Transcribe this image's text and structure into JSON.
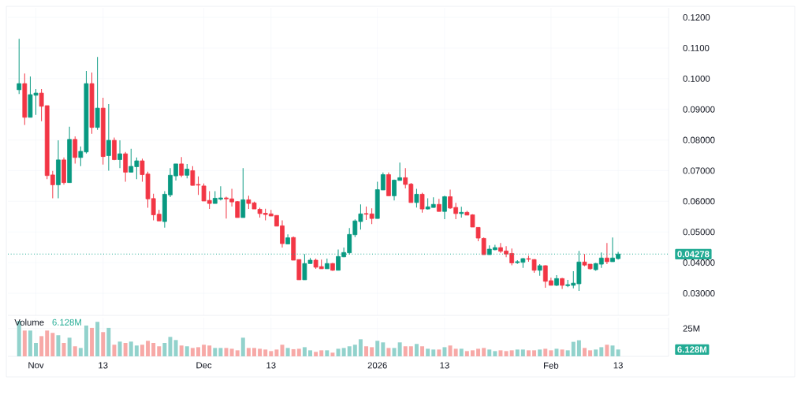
{
  "chart_data": [
    {
      "type": "candlestick",
      "tick_labels": "y",
      "grid": true,
      "xlim": [
        "2025-10-27",
        "2026-02-22"
      ],
      "xticks": [
        {
          "value": "2025-11-01",
          "label": null
        },
        {
          "value": "2025-11-13",
          "label": null
        },
        {
          "value": "2025-12-01",
          "label": null
        },
        {
          "value": "2025-12-13",
          "label": null
        },
        {
          "value": "2026-01-01",
          "label": null
        },
        {
          "value": "2026-01-13",
          "label": null
        },
        {
          "value": "2026-02-01",
          "label": null
        },
        {
          "value": "2026-02-13",
          "label": null
        }
      ],
      "ylim": [
        0.0228,
        0.1231
      ],
      "yticks": [
        {
          "value": 0.03,
          "label": "0.03000"
        },
        {
          "value": 0.04,
          "label": "0.04000"
        },
        {
          "value": 0.05,
          "label": "0.05000"
        },
        {
          "value": 0.06,
          "label": "0.06000"
        },
        {
          "value": 0.07,
          "label": "0.07000"
        },
        {
          "value": 0.08,
          "label": "0.08000"
        },
        {
          "value": 0.09,
          "label": "0.09000"
        },
        {
          "value": 0.1,
          "label": "0.1000"
        },
        {
          "value": 0.11,
          "label": "0.1100"
        },
        {
          "value": 0.12,
          "label": "0.1200"
        }
      ],
      "ref_lines": [
        {
          "axis": "y",
          "value": 0.04278,
          "label": "0.04278",
          "color": "#22ab94",
          "line_style": "dotted"
        }
      ],
      "x": [
        "2025-10-29",
        "2025-10-30",
        "2025-10-31",
        "2025-11-01",
        "2025-11-02",
        "2025-11-03",
        "2025-11-04",
        "2025-11-05",
        "2025-11-06",
        "2025-11-07",
        "2025-11-08",
        "2025-11-09",
        "2025-11-10",
        "2025-11-11",
        "2025-11-12",
        "2025-11-13",
        "2025-11-14",
        "2025-11-15",
        "2025-11-16",
        "2025-11-17",
        "2025-11-18",
        "2025-11-19",
        "2025-11-20",
        "2025-11-21",
        "2025-11-22",
        "2025-11-23",
        "2025-11-24",
        "2025-11-25",
        "2025-11-26",
        "2025-11-27",
        "2025-11-28",
        "2025-11-29",
        "2025-11-30",
        "2025-12-01",
        "2025-12-02",
        "2025-12-03",
        "2025-12-04",
        "2025-12-05",
        "2025-12-06",
        "2025-12-07",
        "2025-12-08",
        "2025-12-09",
        "2025-12-10",
        "2025-12-11",
        "2025-12-12",
        "2025-12-13",
        "2025-12-14",
        "2025-12-15",
        "2025-12-16",
        "2025-12-17",
        "2025-12-18",
        "2025-12-19",
        "2025-12-20",
        "2025-12-21",
        "2025-12-22",
        "2025-12-23",
        "2025-12-24",
        "2025-12-25",
        "2025-12-26",
        "2025-12-27",
        "2025-12-28",
        "2025-12-29",
        "2025-12-30",
        "2025-12-31",
        "2026-01-01",
        "2026-01-02",
        "2026-01-03",
        "2026-01-04",
        "2026-01-05",
        "2026-01-06",
        "2026-01-07",
        "2026-01-08",
        "2026-01-09",
        "2026-01-10",
        "2026-01-11",
        "2026-01-12",
        "2026-01-13",
        "2026-01-14",
        "2026-01-15",
        "2026-01-16",
        "2026-01-17",
        "2026-01-18",
        "2026-01-19",
        "2026-01-20",
        "2026-01-21",
        "2026-01-22",
        "2026-01-23",
        "2026-01-24",
        "2026-01-25",
        "2026-01-26",
        "2026-01-27",
        "2026-01-28",
        "2026-01-29",
        "2026-01-30",
        "2026-01-31",
        "2026-02-01",
        "2026-02-02",
        "2026-02-03",
        "2026-02-04",
        "2026-02-05",
        "2026-02-06",
        "2026-02-07",
        "2026-02-08",
        "2026-02-09",
        "2026-02-10",
        "2026-02-11",
        "2026-02-12",
        "2026-02-13"
      ],
      "ohlc": [
        [
          0.0964,
          0.113,
          0.095,
          0.0984
        ],
        [
          0.0984,
          0.1017,
          0.0849,
          0.0874
        ],
        [
          0.0874,
          0.1007,
          0.0874,
          0.0948
        ],
        [
          0.0946,
          0.0966,
          0.0882,
          0.0953
        ],
        [
          0.0953,
          0.0966,
          0.0861,
          0.091
        ],
        [
          0.0912,
          0.0912,
          0.0672,
          0.0684
        ],
        [
          0.0686,
          0.0699,
          0.061,
          0.0654
        ],
        [
          0.0654,
          0.0799,
          0.061,
          0.0735
        ],
        [
          0.0735,
          0.0743,
          0.0654,
          0.0661
        ],
        [
          0.0661,
          0.0843,
          0.0661,
          0.0802
        ],
        [
          0.0802,
          0.0812,
          0.0723,
          0.0743
        ],
        [
          0.0743,
          0.0779,
          0.0715,
          0.0763
        ],
        [
          0.0761,
          0.1025,
          0.0756,
          0.0984
        ],
        [
          0.0984,
          0.102,
          0.082,
          0.0841
        ],
        [
          0.0841,
          0.1071,
          0.0833,
          0.0904
        ],
        [
          0.0904,
          0.0938,
          0.072,
          0.0746
        ],
        [
          0.0749,
          0.0917,
          0.07,
          0.0799
        ],
        [
          0.0799,
          0.0808,
          0.0734,
          0.0736
        ],
        [
          0.0736,
          0.0799,
          0.0708,
          0.0755
        ],
        [
          0.0755,
          0.0761,
          0.0664,
          0.0695
        ],
        [
          0.0695,
          0.0771,
          0.0695,
          0.0714
        ],
        [
          0.0713,
          0.0743,
          0.0672,
          0.0732
        ],
        [
          0.0732,
          0.0739,
          0.0664,
          0.0687
        ],
        [
          0.0689,
          0.0697,
          0.0579,
          0.0608
        ],
        [
          0.0609,
          0.0625,
          0.0538,
          0.0556
        ],
        [
          0.0558,
          0.0572,
          0.0536,
          0.0536
        ],
        [
          0.0534,
          0.0633,
          0.0514,
          0.0623
        ],
        [
          0.0621,
          0.0708,
          0.0614,
          0.0685
        ],
        [
          0.0683,
          0.0722,
          0.0668,
          0.0722
        ],
        [
          0.0722,
          0.0744,
          0.0679,
          0.0685
        ],
        [
          0.0685,
          0.0722,
          0.0675,
          0.0705
        ],
        [
          0.07,
          0.0715,
          0.0652,
          0.0652
        ],
        [
          0.0655,
          0.0681,
          0.0621,
          0.0653
        ],
        [
          0.065,
          0.0658,
          0.0601,
          0.0601
        ],
        [
          0.0603,
          0.0633,
          0.0575,
          0.0593
        ],
        [
          0.0593,
          0.0633,
          0.0593,
          0.061
        ],
        [
          0.0607,
          0.0649,
          0.0603,
          0.0611
        ],
        [
          0.0611,
          0.0615,
          0.0544,
          0.0608
        ],
        [
          0.0608,
          0.0641,
          0.0583,
          0.0598
        ],
        [
          0.0599,
          0.0601,
          0.0547,
          0.0547
        ],
        [
          0.0547,
          0.0708,
          0.0547,
          0.0605
        ],
        [
          0.0605,
          0.0618,
          0.0575,
          0.0593
        ],
        [
          0.0595,
          0.0599,
          0.0575,
          0.0575
        ],
        [
          0.0574,
          0.0579,
          0.0547,
          0.056
        ],
        [
          0.0561,
          0.0576,
          0.0538,
          0.0557
        ],
        [
          0.0559,
          0.0572,
          0.0552,
          0.0552
        ],
        [
          0.0554,
          0.0554,
          0.0519,
          0.0519
        ],
        [
          0.052,
          0.0538,
          0.0449,
          0.0462
        ],
        [
          0.0461,
          0.0492,
          0.046,
          0.0481
        ],
        [
          0.0482,
          0.0485,
          0.0408,
          0.0408
        ],
        [
          0.041,
          0.041,
          0.0344,
          0.0344
        ],
        [
          0.0344,
          0.0428,
          0.0344,
          0.0397
        ],
        [
          0.0397,
          0.0415,
          0.0397,
          0.0408
        ],
        [
          0.0408,
          0.0413,
          0.038,
          0.0385
        ],
        [
          0.0387,
          0.041,
          0.038,
          0.038
        ],
        [
          0.038,
          0.0413,
          0.038,
          0.0397
        ],
        [
          0.0397,
          0.0399,
          0.0373,
          0.0375
        ],
        [
          0.0375,
          0.0443,
          0.0375,
          0.042
        ],
        [
          0.0419,
          0.0449,
          0.0418,
          0.0433
        ],
        [
          0.0432,
          0.0513,
          0.0426,
          0.0492
        ],
        [
          0.0491,
          0.0541,
          0.0483,
          0.0536
        ],
        [
          0.0534,
          0.059,
          0.0508,
          0.0559
        ],
        [
          0.056,
          0.0583,
          0.0539,
          0.0558
        ],
        [
          0.0559,
          0.0577,
          0.0526,
          0.0544
        ],
        [
          0.0544,
          0.0664,
          0.0544,
          0.0638
        ],
        [
          0.0637,
          0.0694,
          0.0637,
          0.0687
        ],
        [
          0.0687,
          0.0694,
          0.0618,
          0.0618
        ],
        [
          0.0618,
          0.0671,
          0.0603,
          0.0669
        ],
        [
          0.0668,
          0.0726,
          0.0668,
          0.0677
        ],
        [
          0.0677,
          0.0708,
          0.0642,
          0.0655
        ],
        [
          0.0656,
          0.066,
          0.0596,
          0.0596
        ],
        [
          0.0596,
          0.0641,
          0.058,
          0.0623
        ],
        [
          0.0623,
          0.0628,
          0.0563,
          0.0575
        ],
        [
          0.0575,
          0.061,
          0.0573,
          0.0582
        ],
        [
          0.058,
          0.0613,
          0.058,
          0.059
        ],
        [
          0.059,
          0.0608,
          0.0567,
          0.0567
        ],
        [
          0.0567,
          0.0618,
          0.0542,
          0.0615
        ],
        [
          0.0615,
          0.0638,
          0.0575,
          0.0578
        ],
        [
          0.058,
          0.0595,
          0.0542,
          0.056
        ],
        [
          0.056,
          0.0582,
          0.0547,
          0.0564
        ],
        [
          0.0564,
          0.0569,
          0.0555,
          0.0555
        ],
        [
          0.0556,
          0.0558,
          0.0516,
          0.0516
        ],
        [
          0.0515,
          0.0515,
          0.047,
          0.048
        ],
        [
          0.0479,
          0.0482,
          0.0426,
          0.0426
        ],
        [
          0.0426,
          0.0456,
          0.0426,
          0.0444
        ],
        [
          0.0442,
          0.0458,
          0.044,
          0.0449
        ],
        [
          0.0449,
          0.0464,
          0.0432,
          0.0437
        ],
        [
          0.0438,
          0.0454,
          0.0418,
          0.0428
        ],
        [
          0.043,
          0.0446,
          0.0391,
          0.0399
        ],
        [
          0.04,
          0.0408,
          0.0396,
          0.0403
        ],
        [
          0.0401,
          0.0415,
          0.0383,
          0.0413
        ],
        [
          0.0413,
          0.0423,
          0.0403,
          0.0411
        ],
        [
          0.041,
          0.0411,
          0.0367,
          0.0375
        ],
        [
          0.0375,
          0.0395,
          0.0357,
          0.039
        ],
        [
          0.039,
          0.0391,
          0.0318,
          0.0339
        ],
        [
          0.0341,
          0.0351,
          0.0326,
          0.0326
        ],
        [
          0.0326,
          0.0359,
          0.0324,
          0.0348
        ],
        [
          0.0348,
          0.035,
          0.0314,
          0.0326
        ],
        [
          0.0325,
          0.0344,
          0.032,
          0.0328
        ],
        [
          0.0326,
          0.0372,
          0.0316,
          0.0333
        ],
        [
          0.0331,
          0.0438,
          0.0308,
          0.0402
        ],
        [
          0.0402,
          0.0428,
          0.0388,
          0.0392
        ],
        [
          0.0395,
          0.0395,
          0.0377,
          0.038
        ],
        [
          0.0377,
          0.0399,
          0.0373,
          0.0397
        ],
        [
          0.0395,
          0.0433,
          0.0383,
          0.0415
        ],
        [
          0.0415,
          0.0464,
          0.0395,
          0.0403
        ],
        [
          0.0403,
          0.0482,
          0.0403,
          0.0415
        ],
        [
          0.0413,
          0.0435,
          0.041,
          0.0428
        ]
      ],
      "colors": [
        "#089981",
        "#f23645",
        "#089981",
        "#089981",
        "#f23645",
        "#f23645",
        "#f23645",
        "#089981",
        "#f23645",
        "#089981",
        "#f23645",
        "#089981",
        "#089981",
        "#f23645",
        "#089981",
        "#f23645",
        "#089981",
        "#f23645",
        "#089981",
        "#f23645",
        "#089981",
        "#089981",
        "#f23645",
        "#f23645",
        "#f23645",
        "#f23645",
        "#089981",
        "#089981",
        "#089981",
        "#f23645",
        "#089981",
        "#f23645",
        "#f23645",
        "#f23645",
        "#f23645",
        "#089981",
        "#089981",
        "#f23645",
        "#f23645",
        "#f23645",
        "#089981",
        "#f23645",
        "#f23645",
        "#f23645",
        "#f23645",
        "#f23645",
        "#f23645",
        "#f23645",
        "#089981",
        "#f23645",
        "#f23645",
        "#089981",
        "#089981",
        "#f23645",
        "#f23645",
        "#089981",
        "#f23645",
        "#089981",
        "#089981",
        "#089981",
        "#089981",
        "#089981",
        "#f23645",
        "#f23645",
        "#089981",
        "#089981",
        "#f23645",
        "#089981",
        "#089981",
        "#f23645",
        "#f23645",
        "#089981",
        "#f23645",
        "#089981",
        "#089981",
        "#f23645",
        "#089981",
        "#f23645",
        "#f23645",
        "#089981",
        "#f23645",
        "#f23645",
        "#f23645",
        "#f23645",
        "#089981",
        "#089981",
        "#f23645",
        "#f23645",
        "#f23645",
        "#089981",
        "#089981",
        "#f23645",
        "#f23645",
        "#089981",
        "#f23645",
        "#f23645",
        "#089981",
        "#f23645",
        "#089981",
        "#089981",
        "#089981",
        "#f23645",
        "#f23645",
        "#089981",
        "#089981",
        "#f23645",
        "#089981",
        "#089981"
      ]
    },
    {
      "type": "bar",
      "title": "Volume",
      "subtitle": "6.128M",
      "grid": true,
      "xlim": [
        "2025-10-27",
        "2026-02-22"
      ],
      "xticks": [
        {
          "value": "2025-11-01",
          "label": "Nov"
        },
        {
          "value": "2025-11-13",
          "label": "13"
        },
        {
          "value": "2025-12-01",
          "label": "Dec"
        },
        {
          "value": "2025-12-13",
          "label": "13"
        },
        {
          "value": "2026-01-01",
          "label": "2026"
        },
        {
          "value": "2026-01-13",
          "label": "13"
        },
        {
          "value": "2026-02-01",
          "label": "Feb"
        },
        {
          "value": "2026-02-13",
          "label": "13"
        }
      ],
      "ylim": [
        0,
        34.6
      ],
      "yticks": [
        {
          "value": 25,
          "label": "25M"
        }
      ],
      "x": [
        "2025-10-29",
        "2025-10-30",
        "2025-10-31",
        "2025-11-01",
        "2025-11-02",
        "2025-11-03",
        "2025-11-04",
        "2025-11-05",
        "2025-11-06",
        "2025-11-07",
        "2025-11-08",
        "2025-11-09",
        "2025-11-10",
        "2025-11-11",
        "2025-11-12",
        "2025-11-13",
        "2025-11-14",
        "2025-11-15",
        "2025-11-16",
        "2025-11-17",
        "2025-11-18",
        "2025-11-19",
        "2025-11-20",
        "2025-11-21",
        "2025-11-22",
        "2025-11-23",
        "2025-11-24",
        "2025-11-25",
        "2025-11-26",
        "2025-11-27",
        "2025-11-28",
        "2025-11-29",
        "2025-11-30",
        "2025-12-01",
        "2025-12-02",
        "2025-12-03",
        "2025-12-04",
        "2025-12-05",
        "2025-12-06",
        "2025-12-07",
        "2025-12-08",
        "2025-12-09",
        "2025-12-10",
        "2025-12-11",
        "2025-12-12",
        "2025-12-13",
        "2025-12-14",
        "2025-12-15",
        "2025-12-16",
        "2025-12-17",
        "2025-12-18",
        "2025-12-19",
        "2025-12-20",
        "2025-12-21",
        "2025-12-22",
        "2025-12-23",
        "2025-12-24",
        "2025-12-25",
        "2025-12-26",
        "2025-12-27",
        "2025-12-28",
        "2025-12-29",
        "2025-12-30",
        "2025-12-31",
        "2026-01-01",
        "2026-01-02",
        "2026-01-03",
        "2026-01-04",
        "2026-01-05",
        "2026-01-06",
        "2026-01-07",
        "2026-01-08",
        "2026-01-09",
        "2026-01-10",
        "2026-01-11",
        "2026-01-12",
        "2026-01-13",
        "2026-01-14",
        "2026-01-15",
        "2026-01-16",
        "2026-01-17",
        "2026-01-18",
        "2026-01-19",
        "2026-01-20",
        "2026-01-21",
        "2026-01-22",
        "2026-01-23",
        "2026-01-24",
        "2026-01-25",
        "2026-01-26",
        "2026-01-27",
        "2026-01-28",
        "2026-01-29",
        "2026-01-30",
        "2026-01-31",
        "2026-02-01",
        "2026-02-02",
        "2026-02-03",
        "2026-02-04",
        "2026-02-05",
        "2026-02-06",
        "2026-02-07",
        "2026-02-08",
        "2026-02-09",
        "2026-02-10",
        "2026-02-11",
        "2026-02-12",
        "2026-02-13"
      ],
      "values": [
        31.8,
        23.1,
        23.1,
        12.0,
        18.1,
        23.1,
        21.0,
        18.9,
        12.0,
        16.7,
        9.0,
        7.5,
        27.6,
        25.5,
        30.9,
        21.7,
        25.5,
        10.4,
        13.2,
        12.0,
        13.2,
        9.7,
        10.4,
        13.9,
        12.0,
        9.0,
        12.0,
        17.4,
        14.6,
        9.7,
        9.0,
        7.5,
        8.2,
        10.4,
        9.7,
        7.5,
        7.5,
        7.5,
        6.8,
        5.4,
        16.7,
        7.5,
        7.5,
        6.8,
        6.1,
        4.7,
        6.1,
        10.4,
        7.5,
        6.4,
        6.8,
        8.2,
        5.4,
        4.0,
        5.4,
        5.4,
        3.3,
        6.8,
        7.5,
        9.0,
        10.4,
        15.3,
        9.0,
        8.2,
        13.9,
        12.5,
        7.5,
        7.5,
        12.5,
        9.0,
        9.0,
        11.1,
        9.0,
        6.8,
        6.1,
        6.1,
        8.2,
        9.7,
        6.8,
        6.8,
        4.7,
        5.4,
        6.8,
        7.5,
        6.1,
        4.7,
        5.4,
        4.7,
        5.4,
        6.1,
        6.1,
        5.4,
        5.4,
        6.1,
        6.8,
        5.4,
        6.8,
        6.1,
        5.4,
        13.0,
        14.4,
        7.5,
        5.4,
        6.1,
        8.2,
        10.4,
        9.7,
        6.128
      ],
      "annotations": [
        "6.128M"
      ],
      "colors": [
        "#92d2cc",
        "#f7a9a7",
        "#92d2cc",
        "#92d2cc",
        "#f7a9a7",
        "#f7a9a7",
        "#f7a9a7",
        "#92d2cc",
        "#f7a9a7",
        "#92d2cc",
        "#f7a9a7",
        "#92d2cc",
        "#92d2cc",
        "#f7a9a7",
        "#92d2cc",
        "#f7a9a7",
        "#92d2cc",
        "#f7a9a7",
        "#92d2cc",
        "#f7a9a7",
        "#92d2cc",
        "#92d2cc",
        "#f7a9a7",
        "#f7a9a7",
        "#f7a9a7",
        "#f7a9a7",
        "#92d2cc",
        "#92d2cc",
        "#92d2cc",
        "#f7a9a7",
        "#92d2cc",
        "#f7a9a7",
        "#f7a9a7",
        "#f7a9a7",
        "#f7a9a7",
        "#92d2cc",
        "#92d2cc",
        "#f7a9a7",
        "#f7a9a7",
        "#f7a9a7",
        "#92d2cc",
        "#f7a9a7",
        "#f7a9a7",
        "#f7a9a7",
        "#f7a9a7",
        "#f7a9a7",
        "#f7a9a7",
        "#f7a9a7",
        "#92d2cc",
        "#f7a9a7",
        "#f7a9a7",
        "#92d2cc",
        "#92d2cc",
        "#f7a9a7",
        "#f7a9a7",
        "#92d2cc",
        "#f7a9a7",
        "#92d2cc",
        "#92d2cc",
        "#92d2cc",
        "#92d2cc",
        "#92d2cc",
        "#f7a9a7",
        "#f7a9a7",
        "#92d2cc",
        "#92d2cc",
        "#f7a9a7",
        "#92d2cc",
        "#92d2cc",
        "#f7a9a7",
        "#f7a9a7",
        "#92d2cc",
        "#f7a9a7",
        "#92d2cc",
        "#92d2cc",
        "#f7a9a7",
        "#92d2cc",
        "#f7a9a7",
        "#f7a9a7",
        "#92d2cc",
        "#f7a9a7",
        "#f7a9a7",
        "#f7a9a7",
        "#f7a9a7",
        "#92d2cc",
        "#92d2cc",
        "#f7a9a7",
        "#f7a9a7",
        "#f7a9a7",
        "#92d2cc",
        "#92d2cc",
        "#f7a9a7",
        "#f7a9a7",
        "#92d2cc",
        "#f7a9a7",
        "#f7a9a7",
        "#92d2cc",
        "#f7a9a7",
        "#92d2cc",
        "#92d2cc",
        "#92d2cc",
        "#f7a9a7",
        "#f7a9a7",
        "#92d2cc",
        "#92d2cc",
        "#f7a9a7",
        "#92d2cc",
        "#92d2cc"
      ]
    }
  ]
}
